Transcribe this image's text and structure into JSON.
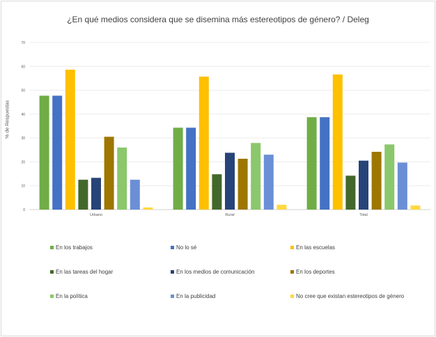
{
  "chart_data": {
    "type": "bar",
    "title": "¿En qué medios considera que se disemina más estereotipos de género? / Deleg",
    "ylabel": "% de Respuestas",
    "xlabel": "",
    "ylim": [
      0,
      70
    ],
    "yticks": [
      0,
      10,
      20,
      30,
      40,
      50,
      60,
      70
    ],
    "grid": true,
    "legend_position": "bottom",
    "categories": [
      "Urbano",
      "Rural",
      "Total"
    ],
    "series": [
      {
        "name": "En los trabajos",
        "color": "#70ad47",
        "values": [
          47.7,
          34.3,
          38.7
        ]
      },
      {
        "name": "No lo sé",
        "color": "#4472c4",
        "values": [
          47.7,
          34.3,
          38.7
        ]
      },
      {
        "name": "En las escuelas",
        "color": "#ffc000",
        "values": [
          58.6,
          55.7,
          56.6
        ]
      },
      {
        "name": "En las tareas del hogar",
        "color": "#43682b",
        "values": [
          12.5,
          14.8,
          14.2
        ]
      },
      {
        "name": "En los medios de comunicación",
        "color": "#264478",
        "values": [
          13.3,
          23.8,
          20.5
        ]
      },
      {
        "name": "En los deportes",
        "color": "#9e7700",
        "values": [
          30.5,
          21.3,
          24.2
        ]
      },
      {
        "name": "En la política",
        "color": "#8bc76b",
        "values": [
          26.0,
          27.9,
          27.3
        ]
      },
      {
        "name": "En la publicidad",
        "color": "#6b8fd6",
        "values": [
          12.5,
          23.0,
          19.7
        ]
      },
      {
        "name": "No cree que existan estereotipos de género",
        "color": "#ffd93f",
        "values": [
          0.9,
          2.0,
          1.7
        ]
      }
    ]
  }
}
